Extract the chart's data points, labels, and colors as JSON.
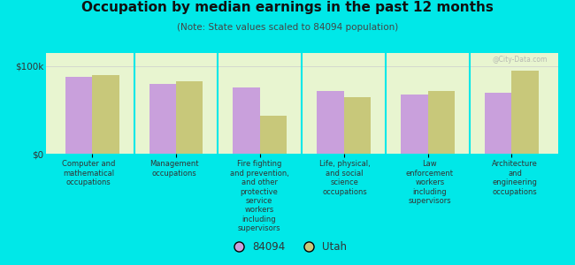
{
  "title": "Occupation by median earnings in the past 12 months",
  "subtitle": "(Note: State values scaled to 84094 population)",
  "categories": [
    "Computer and\nmathematical\noccupations",
    "Management\noccupations",
    "Fire fighting\nand prevention,\nand other\nprotective\nservice\nworkers\nincluding\nsupervisors",
    "Life, physical,\nand social\nscience\noccupations",
    "Law\nenforcement\nworkers\nincluding\nsupervisors",
    "Architecture\nand\nengineering\noccupations"
  ],
  "values_84094": [
    88000,
    80000,
    76000,
    72000,
    68000,
    70000
  ],
  "values_utah": [
    90000,
    83000,
    43000,
    65000,
    72000,
    95000
  ],
  "color_84094": "#c9a0dc",
  "color_utah": "#c8c87a",
  "background_plot_top": "#e8f5d0",
  "background_plot_bottom": "#d0f0d0",
  "background_fig": "#00e8e8",
  "ylim": [
    0,
    115000
  ],
  "ytick_labels": [
    "$0",
    "$100k"
  ],
  "ytick_vals": [
    0,
    100000
  ],
  "legend_label_84094": "84094",
  "legend_label_utah": "Utah",
  "bar_width": 0.32,
  "watermark": "@City-Data.com"
}
